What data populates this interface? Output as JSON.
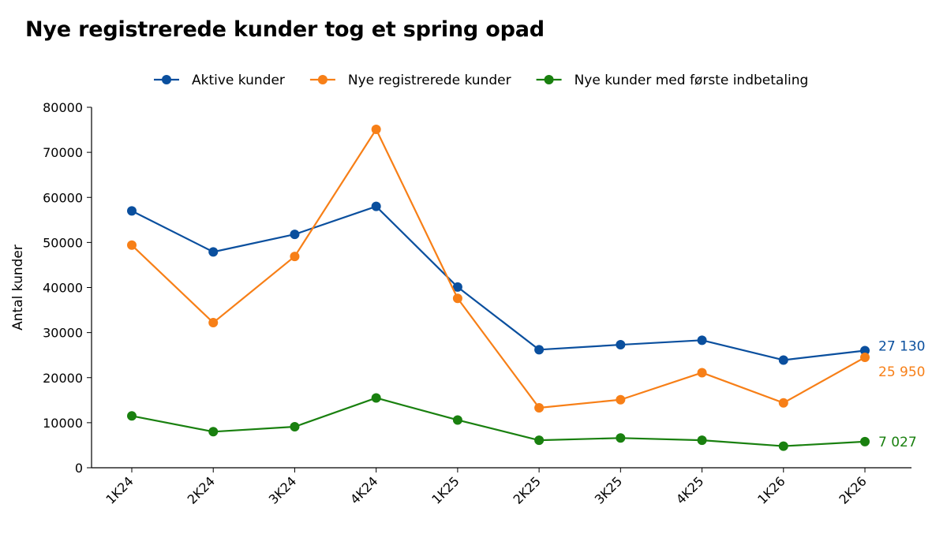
{
  "chart_data": {
    "type": "line",
    "title": "Nye registrerede kunder tog et spring opad",
    "xlabel": "",
    "ylabel": "Antal kunder",
    "categories": [
      "1K24",
      "2K24",
      "3K24",
      "4K24",
      "1K25",
      "2K25",
      "3K25",
      "4K25",
      "1K26",
      "2K26"
    ],
    "ylim": [
      0,
      80000
    ],
    "yticks": [
      0,
      10000,
      20000,
      30000,
      40000,
      50000,
      60000,
      70000,
      80000
    ],
    "grid": false,
    "legend_position": "top-center",
    "series": [
      {
        "name": "Aktive kunder",
        "color": "#0a4f9e",
        "values": [
          57000,
          47900,
          51800,
          58000,
          40100,
          26200,
          27300,
          28300,
          23900,
          26000
        ],
        "end_label": "27 130"
      },
      {
        "name": "Nye registrerede kunder",
        "color": "#f77f17",
        "values": [
          49400,
          32200,
          46900,
          75100,
          37600,
          13300,
          15100,
          21100,
          14400,
          24500
        ],
        "end_label": "25 950"
      },
      {
        "name": "Nye kunder med første indbetaling",
        "color": "#19800f",
        "values": [
          11500,
          8000,
          9100,
          15500,
          10600,
          6100,
          6600,
          6100,
          4800,
          5800
        ],
        "end_label": "7 027"
      }
    ]
  }
}
